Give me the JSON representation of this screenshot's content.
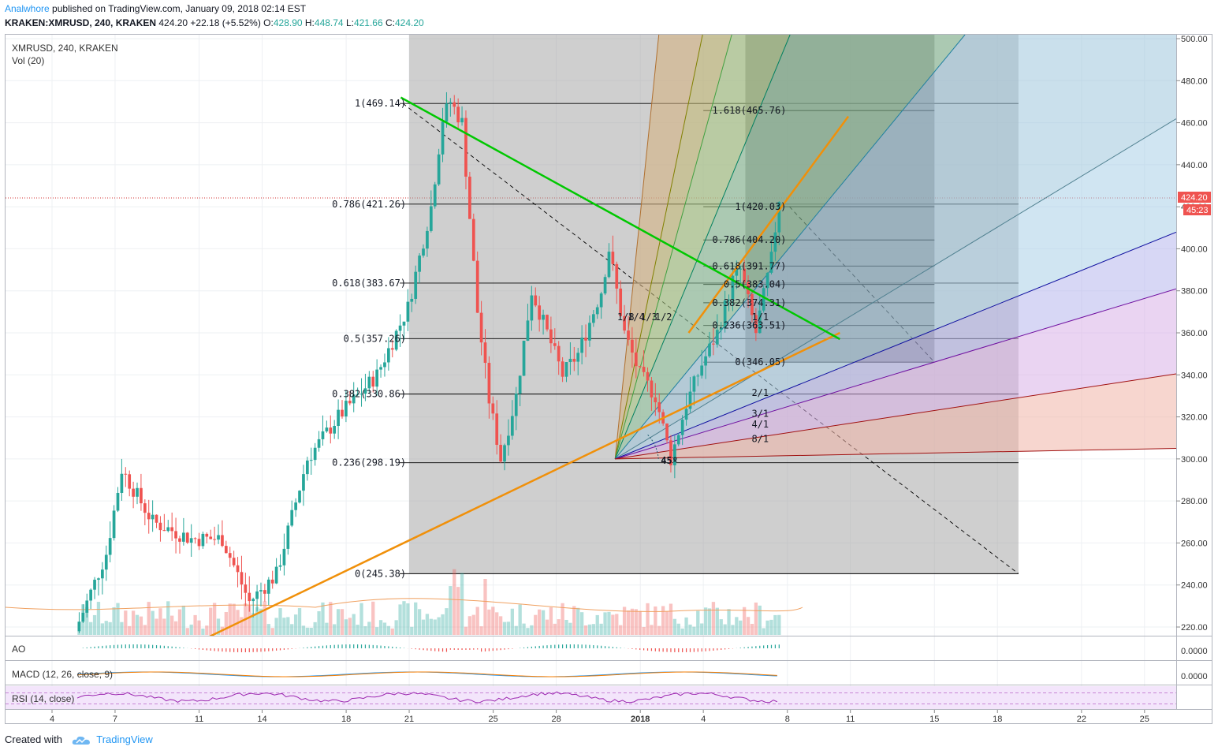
{
  "header": {
    "author": "Analwhore",
    "published_text": "published on TradingView.com, January 09, 2018 02:14 EST",
    "symbol": "KRAKEN:XMRUSD, 240, KRAKEN",
    "price": "424.20",
    "change": "+22.18 (+5.52%)",
    "o_label": "O:",
    "o_val": "428.90",
    "h_label": "H:",
    "h_val": "448.74",
    "l_label": "L:",
    "l_val": "421.66",
    "c_label": "C:",
    "c_val": "424.20"
  },
  "pane_title": "XMRUSD, 240, KRAKEN",
  "vol_title": "Vol (20)",
  "indicators": {
    "ao": "AO",
    "macd": "MACD (12, 26, close, 9)",
    "rsi": "RSI (14, close)",
    "ao_value": "0.0000",
    "macd_value": "0.0000"
  },
  "price_tag": "424.20",
  "time_tag": "45:23",
  "footer": {
    "created": "Created with",
    "brand": "TradingView"
  },
  "colors": {
    "up": "#26a69a",
    "down": "#ef5350",
    "fib_trend": "#00c800",
    "trendline": "#f0900a",
    "current_price": "#d32f2f"
  },
  "chart_data": {
    "type": "candlestick",
    "symbol": "XMRUSD",
    "interval": "240",
    "exchange": "KRAKEN",
    "y_ticks": [
      220,
      240,
      260,
      280,
      300,
      320,
      340,
      360,
      380,
      400,
      420,
      440,
      460,
      480,
      500
    ],
    "y_tick_labels": [
      "220.00",
      "240.00",
      "260.00",
      "280.00",
      "300.00",
      "320.00",
      "340.00",
      "360.00",
      "380.00",
      "400.00",
      "420.00",
      "440.00",
      "460.00",
      "480.00",
      "500.00"
    ],
    "ylim": [
      215,
      504
    ],
    "x_tick_labels": [
      "4",
      "7",
      "11",
      "14",
      "18",
      "21",
      "25",
      "28",
      "2018",
      "4",
      "8",
      "11",
      "15",
      "18",
      "22",
      "25"
    ],
    "x_tick_days": [
      4,
      7,
      11,
      14,
      18,
      21,
      25,
      28,
      32,
      35,
      39,
      42,
      46,
      49,
      53,
      56
    ],
    "fib_retracement_1": [
      {
        "label": "1(469.14)",
        "level": 1,
        "value": 469.14
      },
      {
        "label": "0.786(421.26)",
        "level": 0.786,
        "value": 421.26
      },
      {
        "label": "0.618(383.67)",
        "level": 0.618,
        "value": 383.67
      },
      {
        "label": "0.5(357.26)",
        "level": 0.5,
        "value": 357.26
      },
      {
        "label": "0.382(330.86)",
        "level": 0.382,
        "value": 330.86
      },
      {
        "label": "0.236(298.19)",
        "level": 0.236,
        "value": 298.19
      },
      {
        "label": "0(245.38)",
        "level": 0,
        "value": 245.38
      }
    ],
    "fib_retracement_2": [
      {
        "label": "1.618(465.76)",
        "level": 1.618,
        "value": 465.76
      },
      {
        "label": "1(420.03)",
        "level": 1,
        "value": 420.03
      },
      {
        "label": "0.786(404.20)",
        "level": 0.786,
        "value": 404.2
      },
      {
        "label": "0.618(391.77)",
        "level": 0.618,
        "value": 391.77
      },
      {
        "label": "0.5(383.04)",
        "level": 0.5,
        "value": 383.04
      },
      {
        "label": "0.382(374.31)",
        "level": 0.382,
        "value": 374.31
      },
      {
        "label": "0.236(363.51)",
        "level": 0.236,
        "value": 363.51
      },
      {
        "label": "0(346.05)",
        "level": 0,
        "value": 346.05
      }
    ],
    "gann_fan_labels": [
      "1/8",
      "1/4",
      "1/3",
      "1/2",
      "1/1",
      "2/1",
      "3/1",
      "4/1",
      "8/1"
    ],
    "gann_angle_label": "45º",
    "current_price": 424.2
  }
}
